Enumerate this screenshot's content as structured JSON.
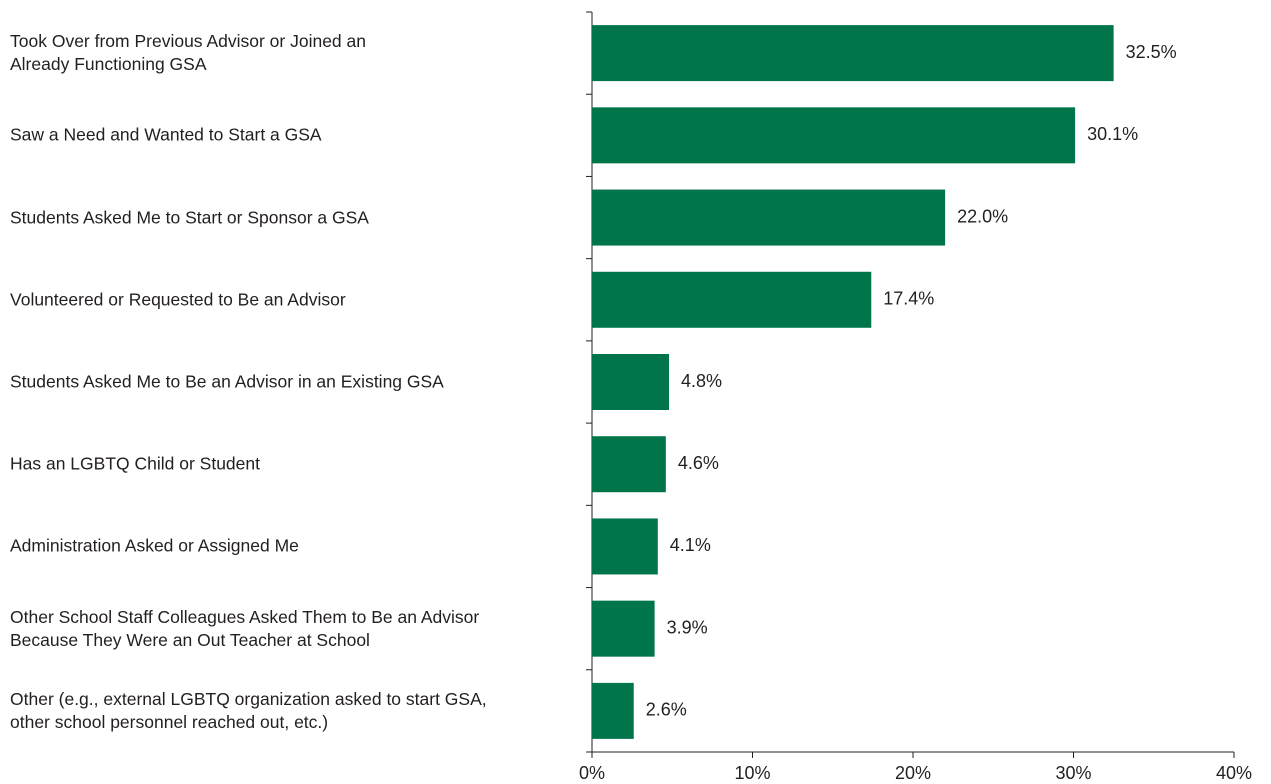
{
  "chart_data": {
    "type": "bar",
    "orientation": "horizontal",
    "categories": [
      "Took Over from Previous Advisor or Joined an\nAlready Functioning GSA",
      "Saw a Need and Wanted to Start a GSA",
      "Students Asked Me to Start or Sponsor a GSA",
      "Volunteered or Requested to Be an Advisor",
      "Students Asked Me to Be an Advisor in an Existing GSA",
      "Has an LGBTQ Child or Student",
      "Administration Asked or Assigned Me",
      "Other School Staff Colleagues Asked Them to Be an Advisor\nBecause They Were an Out Teacher at School",
      "Other (e.g., external LGBTQ organization asked to start GSA,\nother school personnel reached out, etc.)"
    ],
    "values": [
      32.5,
      30.1,
      22.0,
      17.4,
      4.8,
      4.6,
      4.1,
      3.9,
      2.6
    ],
    "value_labels": [
      "32.5%",
      "30.1%",
      "22.0%",
      "17.4%",
      "4.8%",
      "4.6%",
      "4.1%",
      "3.9%",
      "2.6%"
    ],
    "color": "#00754a",
    "xlim": [
      0,
      40
    ],
    "xticks": [
      {
        "value": 0,
        "label": "0%"
      },
      {
        "value": 10,
        "label": "10%"
      },
      {
        "value": 20,
        "label": "20%"
      },
      {
        "value": 30,
        "label": "30%"
      },
      {
        "value": 40,
        "label": "40%"
      }
    ],
    "grid": false
  }
}
